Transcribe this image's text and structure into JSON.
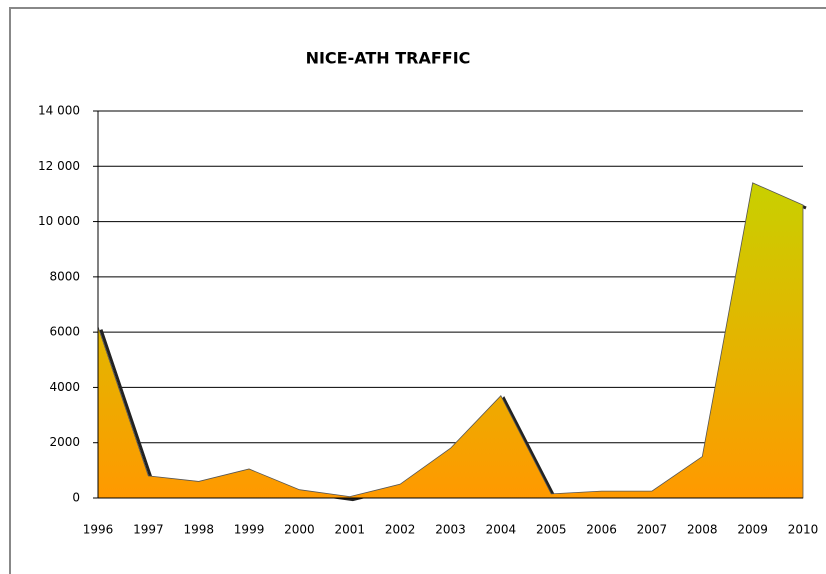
{
  "chart_data": {
    "type": "area",
    "title": "NICE-ATH TRAFFIC",
    "categories": [
      "1996",
      "1997",
      "1998",
      "1999",
      "2000",
      "2001",
      "2002",
      "2003",
      "2004",
      "2005",
      "2006",
      "2007",
      "2008",
      "2009",
      "2010"
    ],
    "values": [
      6200,
      800,
      600,
      1050,
      300,
      50,
      500,
      1800,
      3700,
      150,
      250,
      250,
      1500,
      11400,
      10600
    ],
    "gradient": [
      "#c8d000",
      "#ff9900"
    ],
    "ylim": [
      0,
      14000
    ],
    "yticks": [
      0,
      2000,
      4000,
      6000,
      8000,
      {
        "value": 10000,
        "label": "10 000"
      },
      {
        "value": 12000,
        "label": "12 000"
      },
      {
        "value": 14000,
        "label": "14 000"
      }
    ],
    "grid": true
  }
}
